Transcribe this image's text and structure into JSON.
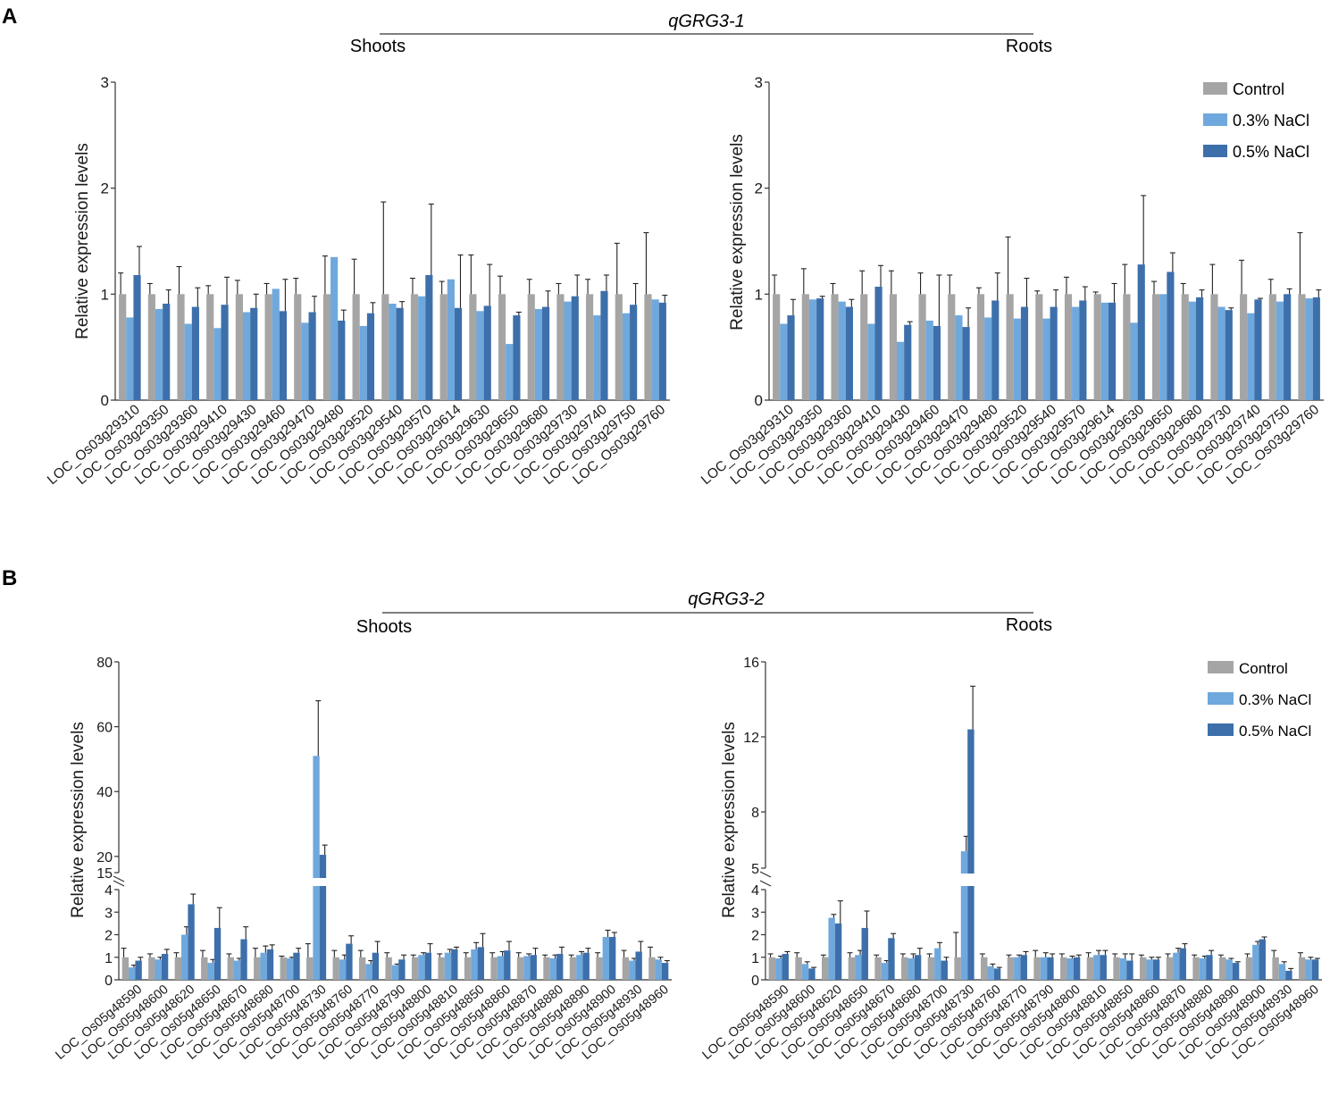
{
  "panels": {
    "A": {
      "letter": "A",
      "qtl": "qGRG3-1",
      "shoots_label": "Shoots",
      "roots_label": "Roots"
    },
    "B": {
      "letter": "B",
      "qtl": "qGRG3-2",
      "shoots_label": "Shoots",
      "roots_label": "Roots"
    }
  },
  "legend": [
    "Control",
    "0.3% NaCl",
    "0.5% NaCl"
  ],
  "colors": {
    "control": "#a5a5a5",
    "nacl_03": "#6fa8dc",
    "nacl_05": "#3d6fab",
    "axis": "#333333"
  },
  "chart_data": [
    {
      "id": "A-shoots",
      "type": "bar",
      "panel": "A",
      "tissue": "Shoots",
      "ylabel": "Relative expression levels",
      "ylim": [
        0,
        3
      ],
      "yticks": [
        "0",
        "1",
        "2",
        "3"
      ],
      "categories": [
        "LOC_Os03g29310",
        "LOC_Os03g29350",
        "LOC_Os03g29360",
        "LOC_Os03g29410",
        "LOC_Os03g29430",
        "LOC_Os03g29460",
        "LOC_Os03g29470",
        "LOC_Os03g29480",
        "LOC_Os03g29520",
        "LOC_Os03g29540",
        "LOC_Os03g29570",
        "LOC_Os03g29614",
        "LOC_Os03g29630",
        "LOC_Os03g29650",
        "LOC_Os03g29680",
        "LOC_Os03g29730",
        "LOC_Os03g29740",
        "LOC_Os03g29750",
        "LOC_Os03g29760"
      ],
      "series": [
        {
          "name": "Control",
          "values": [
            1,
            1,
            1,
            1,
            1,
            1,
            1,
            1,
            1,
            1,
            1,
            1,
            1,
            1,
            1,
            1,
            1,
            1,
            1
          ],
          "err": [
            0.2,
            0.1,
            0.26,
            0.08,
            0.13,
            0.1,
            0.15,
            0.36,
            0.33,
            0.87,
            0.15,
            0.12,
            0.37,
            0.17,
            0.14,
            0.1,
            0.14,
            0.48,
            0.58
          ]
        },
        {
          "name": "0.3% NaCl",
          "values": [
            0.78,
            0.86,
            0.72,
            0.68,
            0.83,
            1.05,
            0.73,
            1.35,
            0.7,
            0.91,
            0.98,
            1.14,
            0.84,
            0.53,
            0.86,
            0.93,
            0.8,
            0.82,
            0.95
          ]
        },
        {
          "name": "0.5% NaCl",
          "values": [
            1.18,
            0.91,
            0.88,
            0.9,
            0.87,
            0.84,
            0.83,
            0.75,
            0.82,
            0.87,
            1.18,
            0.87,
            0.89,
            0.8,
            0.88,
            0.98,
            1.03,
            0.9,
            0.92
          ],
          "err": [
            0.27,
            0.13,
            0.18,
            0.26,
            0.13,
            0.3,
            0.15,
            0.1,
            0.1,
            0.06,
            0.67,
            0.5,
            0.39,
            0.03,
            0.15,
            0.2,
            0.15,
            0.2,
            0.07
          ]
        }
      ]
    },
    {
      "id": "A-roots",
      "type": "bar",
      "panel": "A",
      "tissue": "Roots",
      "ylabel": "Relative expression levels",
      "ylim": [
        0,
        3
      ],
      "yticks": [
        "0",
        "1",
        "2",
        "3"
      ],
      "legend": "top-right",
      "categories": [
        "LOC_Os03g29310",
        "LOC_Os03g29350",
        "LOC_Os03g29360",
        "LOC_Os03g29410",
        "LOC_Os03g29430",
        "LOC_Os03g29460",
        "LOC_Os03g29470",
        "LOC_Os03g29480",
        "LOC_Os03g29520",
        "LOC_Os03g29540",
        "LOC_Os03g29570",
        "LOC_Os03g29614",
        "LOC_Os03g29630",
        "LOC_Os03g29650",
        "LOC_Os03g29680",
        "LOC_Os03g29730",
        "LOC_Os03g29740",
        "LOC_Os03g29750",
        "LOC_Os03g29760"
      ],
      "series": [
        {
          "name": "Control",
          "values": [
            1,
            1,
            1,
            1,
            1,
            1,
            1,
            1,
            1,
            1,
            1,
            1,
            1,
            1,
            1,
            1,
            1,
            1,
            1
          ],
          "err": [
            0.18,
            0.24,
            0.1,
            0.22,
            0.22,
            0.2,
            0.18,
            0.06,
            0.54,
            0.03,
            0.16,
            0.02,
            0.28,
            0.12,
            0.1,
            0.28,
            0.32,
            0.14,
            0.58
          ]
        },
        {
          "name": "0.3% NaCl",
          "values": [
            0.72,
            0.95,
            0.93,
            0.72,
            0.55,
            0.75,
            0.8,
            0.78,
            0.77,
            0.77,
            0.88,
            0.92,
            0.73,
            1.0,
            0.93,
            0.88,
            0.82,
            0.93,
            0.96
          ]
        },
        {
          "name": "0.5% NaCl",
          "values": [
            0.8,
            0.96,
            0.88,
            1.07,
            0.71,
            0.7,
            0.69,
            0.94,
            0.88,
            0.88,
            0.94,
            0.92,
            1.28,
            1.21,
            0.97,
            0.85,
            0.95,
            1.0,
            0.97
          ],
          "err": [
            0.15,
            0.02,
            0.07,
            0.2,
            0.03,
            0.48,
            0.18,
            0.26,
            0.27,
            0.16,
            0.13,
            0.18,
            0.65,
            0.18,
            0.07,
            0.02,
            0.01,
            0.05,
            0.07
          ]
        }
      ]
    },
    {
      "id": "B-shoots",
      "type": "bar",
      "panel": "B",
      "tissue": "Shoots",
      "ylabel": "Relative expression levels",
      "axis_break": true,
      "lower_ylim": [
        0,
        4
      ],
      "lower_yticks": [
        "0",
        "1",
        "2",
        "3",
        "4"
      ],
      "upper_ylim": [
        15,
        80
      ],
      "upper_yticks": [
        "15",
        "20",
        "40",
        "60",
        "80"
      ],
      "categories": [
        "LOC_Os05g48590",
        "LOC_Os05g48600",
        "LOC_Os05g48620",
        "LOC_Os05g48650",
        "LOC_Os05g48670",
        "LOC_Os05g48680",
        "LOC_Os05g48700",
        "LOC_Os05g48730",
        "LOC_Os05g48760",
        "LOC_Os05g48770",
        "LOC_Os05g48790",
        "LOC_Os05g48800",
        "LOC_Os05g48810",
        "LOC_Os05g48850",
        "LOC_Os05g48860",
        "LOC_Os05g48870",
        "LOC_Os05g48880",
        "LOC_Os05g48890",
        "LOC_Os05g48900",
        "LOC_Os05g48930",
        "LOC_Os05g48960"
      ],
      "series": [
        {
          "name": "Control",
          "values": [
            1,
            1,
            1,
            1,
            1,
            1,
            1,
            1,
            1,
            1,
            1,
            1,
            1,
            1,
            1,
            1,
            1,
            1,
            1,
            1,
            1
          ],
          "err": [
            0.4,
            0.15,
            0.2,
            0.3,
            0.15,
            0.4,
            0.05,
            0.6,
            0.3,
            0.3,
            0.2,
            0.1,
            0.15,
            0.2,
            0.2,
            0.2,
            0.1,
            0.1,
            0.2,
            0.3,
            0.45
          ]
        },
        {
          "name": "0.3% NaCl",
          "values": [
            0.55,
            0.9,
            2.0,
            0.75,
            0.85,
            1.2,
            0.95,
            51.0,
            0.9,
            0.7,
            0.65,
            1.1,
            1.2,
            1.35,
            1.05,
            1.05,
            0.95,
            1.1,
            1.9,
            0.85,
            0.9
          ],
          "err": [
            0.1,
            0.1,
            0.35,
            0.15,
            0.1,
            0.3,
            0.05,
            17.0,
            0.2,
            0.15,
            0.05,
            0.1,
            0.15,
            0.3,
            0.2,
            0.1,
            0.15,
            0.15,
            0.3,
            0.1,
            0.1
          ]
        },
        {
          "name": "0.5% NaCl",
          "values": [
            0.85,
            1.15,
            3.35,
            2.3,
            1.8,
            1.35,
            1.2,
            20.5,
            1.6,
            1.2,
            0.9,
            1.2,
            1.35,
            1.45,
            1.3,
            1.1,
            1.15,
            1.2,
            1.9,
            1.25,
            0.75
          ],
          "err": [
            0.15,
            0.2,
            0.45,
            0.9,
            0.55,
            0.2,
            0.2,
            3.0,
            0.35,
            0.5,
            0.2,
            0.4,
            0.1,
            0.6,
            0.4,
            0.3,
            0.3,
            0.2,
            0.2,
            0.45,
            0.1
          ]
        }
      ]
    },
    {
      "id": "B-roots",
      "type": "bar",
      "panel": "B",
      "tissue": "Roots",
      "ylabel": "Relative expression levels",
      "axis_break": true,
      "lower_ylim": [
        0,
        4
      ],
      "lower_yticks": [
        "0",
        "1",
        "2",
        "3",
        "4"
      ],
      "upper_ylim": [
        5,
        16
      ],
      "upper_yticks": [
        "5",
        "8",
        "12",
        "16"
      ],
      "legend": "top-right",
      "categories": [
        "LOC_Os05g48590",
        "LOC_Os05g48600",
        "LOC_Os05g48620",
        "LOC_Os05g48650",
        "LOC_Os05g48670",
        "LOC_Os05g48680",
        "LOC_Os05g48700",
        "LOC_Os05g48730",
        "LOC_Os05g48760",
        "LOC_Os05g48770",
        "LOC_Os05g48790",
        "LOC_Os05g48800",
        "LOC_Os05g48810",
        "LOC_Os05g48850",
        "LOC_Os05g48860",
        "LOC_Os05g48870",
        "LOC_Os05g48880",
        "LOC_Os05g48890",
        "LOC_Os05g48900",
        "LOC_Os05g48930",
        "LOC_Os05g48960"
      ],
      "series": [
        {
          "name": "Control",
          "values": [
            1,
            1,
            1,
            1,
            1,
            1,
            1,
            1,
            1,
            1,
            1,
            1,
            1,
            1,
            1,
            1,
            1,
            1,
            1,
            1,
            1
          ],
          "err": [
            0.15,
            0.2,
            0.1,
            0.2,
            0.1,
            0.15,
            0.15,
            1.1,
            0.15,
            0.1,
            0.3,
            0.15,
            0.2,
            0.15,
            0.1,
            0.15,
            0.1,
            0.1,
            0.15,
            0.3,
            0.2
          ]
        },
        {
          "name": "0.3% NaCl",
          "values": [
            0.95,
            0.7,
            2.75,
            1.1,
            0.75,
            0.95,
            1.4,
            5.9,
            0.6,
            1.0,
            1.0,
            0.95,
            1.1,
            0.95,
            0.9,
            1.2,
            0.95,
            0.9,
            1.55,
            0.7,
            0.9
          ],
          "err": [
            0.1,
            0.1,
            0.15,
            0.2,
            0.1,
            0.2,
            0.25,
            0.8,
            0.1,
            0.1,
            0.2,
            0.1,
            0.2,
            0.2,
            0.1,
            0.2,
            0.1,
            0.05,
            0.15,
            0.1,
            0.1
          ]
        },
        {
          "name": "0.5% NaCl",
          "values": [
            1.15,
            0.5,
            2.5,
            2.3,
            1.85,
            1.1,
            0.85,
            12.4,
            0.5,
            1.1,
            1.0,
            1.0,
            1.1,
            0.85,
            0.9,
            1.4,
            1.1,
            0.75,
            1.8,
            0.4,
            0.9
          ],
          "err": [
            0.1,
            0.05,
            1.0,
            0.75,
            0.2,
            0.3,
            0.15,
            2.3,
            0.05,
            0.15,
            0.15,
            0.1,
            0.2,
            0.3,
            0.1,
            0.2,
            0.2,
            0.05,
            0.1,
            0.1,
            0.05
          ]
        }
      ]
    }
  ]
}
